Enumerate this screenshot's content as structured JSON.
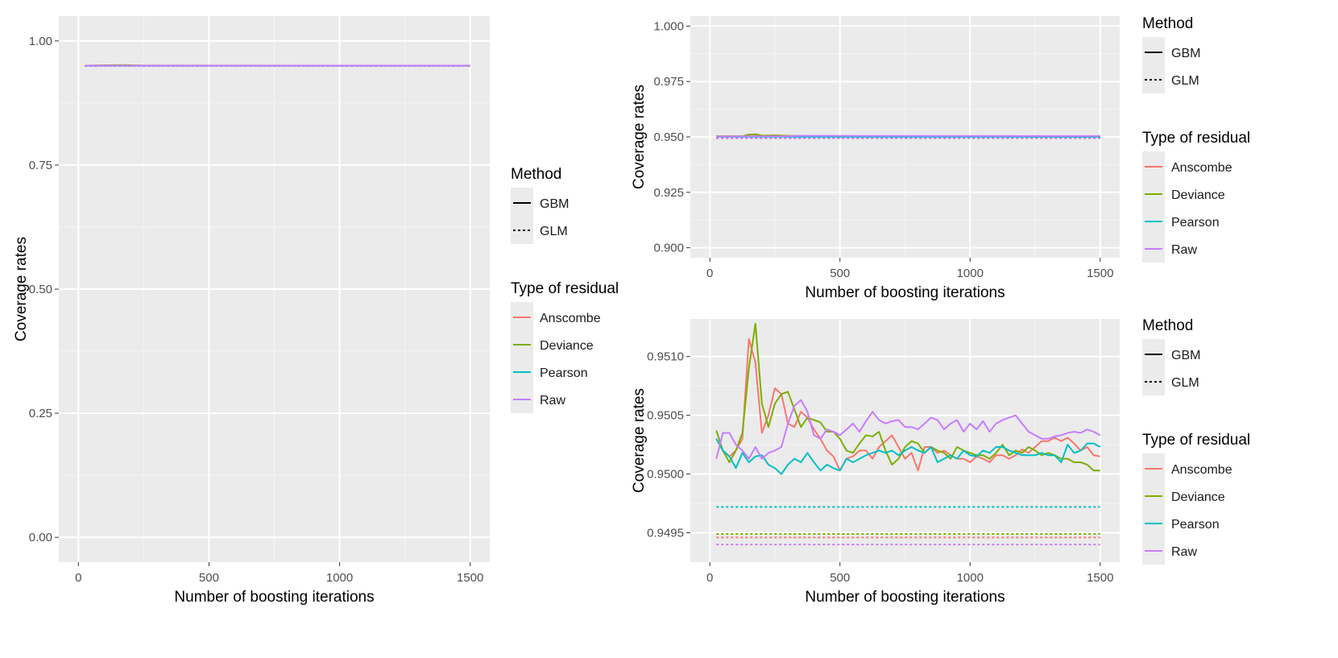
{
  "colors": {
    "panel_bg": "#EBEBEB",
    "grid_major": "#FFFFFF",
    "grid_minor": "#F4F4F4",
    "tick_text": "#4D4D4D",
    "axis_title": "#000000",
    "Anscombe": "#F8766D",
    "Deviance": "#7CAE00",
    "Pearson": "#00BFC4",
    "Raw": "#C77CFF"
  },
  "legend": {
    "method_title": "Method",
    "method_items": [
      {
        "label": "GBM",
        "style": "solid"
      },
      {
        "label": "GLM",
        "style": "dotted"
      }
    ],
    "residual_title": "Type of residual",
    "residual_items": [
      "Anscombe",
      "Deviance",
      "Pearson",
      "Raw"
    ]
  },
  "chart_data": [
    {
      "id": "left",
      "type": "line",
      "title": "",
      "xlabel": "Number of boosting iterations",
      "ylabel": "Coverage rates",
      "xlim": [
        -75,
        1575
      ],
      "ylim": [
        -0.05,
        1.05
      ],
      "xticks": [
        0,
        500,
        1000,
        1500
      ],
      "xtick_labels": [
        "0",
        "500",
        "1000",
        "1500"
      ],
      "yticks": [
        0,
        0.25,
        0.5,
        0.75,
        1
      ],
      "ytick_labels": [
        "0.00",
        "0.25",
        "0.50",
        "0.75",
        "1.00"
      ],
      "series": [
        {
          "name": "Anscombe",
          "method": "GBM",
          "x": [
            25,
            1500
          ],
          "y": [
            0.9502,
            0.9502
          ]
        },
        {
          "name": "Deviance",
          "method": "GBM",
          "x": [
            25,
            150,
            175,
            250,
            1500
          ],
          "y": [
            0.9502,
            0.9512,
            0.9512,
            0.9504,
            0.9502
          ]
        },
        {
          "name": "Pearson",
          "method": "GBM",
          "x": [
            25,
            1500
          ],
          "y": [
            0.9501,
            0.9501
          ]
        },
        {
          "name": "Raw",
          "method": "GBM",
          "x": [
            25,
            1500
          ],
          "y": [
            0.9503,
            0.9503
          ]
        },
        {
          "name": "Anscombe",
          "method": "GLM",
          "x": [
            25,
            1500
          ],
          "y": [
            0.9495,
            0.9495
          ]
        },
        {
          "name": "Deviance",
          "method": "GLM",
          "x": [
            25,
            1500
          ],
          "y": [
            0.9495,
            0.9495
          ]
        },
        {
          "name": "Pearson",
          "method": "GLM",
          "x": [
            25,
            1500
          ],
          "y": [
            0.9497,
            0.9497
          ]
        },
        {
          "name": "Raw",
          "method": "GLM",
          "x": [
            25,
            1500
          ],
          "y": [
            0.9494,
            0.9494
          ]
        }
      ]
    },
    {
      "id": "top-right",
      "type": "line",
      "title": "",
      "xlabel": "Number of boosting iterations",
      "ylabel": "Coverage rates",
      "xlim": [
        -75,
        1575
      ],
      "ylim": [
        0.8955,
        1.0045
      ],
      "xticks": [
        0,
        500,
        1000,
        1500
      ],
      "xtick_labels": [
        "0",
        "500",
        "1000",
        "1500"
      ],
      "yticks": [
        0.9,
        0.925,
        0.95,
        0.975,
        1
      ],
      "ytick_labels": [
        "0.900",
        "0.925",
        "0.950",
        "0.975",
        "1.000"
      ],
      "series": [
        {
          "name": "Anscombe",
          "method": "GBM",
          "x": [
            25,
            125,
            150,
            175,
            200,
            250,
            300,
            400,
            1500
          ],
          "y": [
            0.9502,
            0.9503,
            0.9511,
            0.9509,
            0.9504,
            0.9507,
            0.9504,
            0.9503,
            0.9502
          ]
        },
        {
          "name": "Deviance",
          "method": "GBM",
          "x": [
            25,
            125,
            150,
            175,
            200,
            250,
            300,
            400,
            1500
          ],
          "y": [
            0.9503,
            0.9503,
            0.951,
            0.9512,
            0.9506,
            0.9507,
            0.9505,
            0.9503,
            0.9501
          ]
        },
        {
          "name": "Pearson",
          "method": "GBM",
          "x": [
            25,
            1500
          ],
          "y": [
            0.9501,
            0.9501
          ]
        },
        {
          "name": "Raw",
          "method": "GBM",
          "x": [
            25,
            300,
            350,
            1500
          ],
          "y": [
            0.9502,
            0.9503,
            0.9505,
            0.9504
          ]
        },
        {
          "name": "Anscombe",
          "method": "GLM",
          "x": [
            25,
            1500
          ],
          "y": [
            0.9495,
            0.9495
          ]
        },
        {
          "name": "Deviance",
          "method": "GLM",
          "x": [
            25,
            1500
          ],
          "y": [
            0.9495,
            0.9495
          ]
        },
        {
          "name": "Pearson",
          "method": "GLM",
          "x": [
            25,
            1500
          ],
          "y": [
            0.9497,
            0.9497
          ]
        },
        {
          "name": "Raw",
          "method": "GLM",
          "x": [
            25,
            1500
          ],
          "y": [
            0.9494,
            0.9494
          ]
        }
      ]
    },
    {
      "id": "bottom-right",
      "type": "line",
      "title": "",
      "xlabel": "Number of boosting iterations",
      "ylabel": "Coverage rates",
      "xlim": [
        -75,
        1575
      ],
      "ylim": [
        0.94925,
        0.95132
      ],
      "xticks": [
        0,
        500,
        1000,
        1500
      ],
      "xtick_labels": [
        "0",
        "500",
        "1000",
        "1500"
      ],
      "yticks": [
        0.9495,
        0.95,
        0.9505,
        0.951
      ],
      "ytick_labels": [
        "0.9495",
        "0.9500",
        "0.9505",
        "0.9510"
      ],
      "series": [
        {
          "name": "Anscombe",
          "method": "GBM",
          "x": [
            25,
            50,
            75,
            100,
            125,
            150,
            175,
            200,
            225,
            250,
            275,
            300,
            325,
            350,
            375,
            400,
            425,
            450,
            475,
            500,
            525,
            550,
            575,
            600,
            625,
            650,
            675,
            700,
            725,
            750,
            775,
            800,
            825,
            850,
            875,
            900,
            925,
            950,
            975,
            1000,
            1025,
            1050,
            1075,
            1100,
            1125,
            1150,
            1175,
            1200,
            1225,
            1250,
            1275,
            1300,
            1325,
            1350,
            1375,
            1400,
            1425,
            1450,
            1475,
            1500
          ],
          "y": [
            0.9503,
            0.9502,
            0.95015,
            0.9502,
            0.9503,
            0.95115,
            0.95095,
            0.95035,
            0.9505,
            0.95073,
            0.95068,
            0.95043,
            0.9504,
            0.95053,
            0.95048,
            0.95038,
            0.9503,
            0.9502,
            0.95015,
            0.95003,
            0.95013,
            0.95015,
            0.9502,
            0.9502,
            0.95013,
            0.95023,
            0.95028,
            0.95033,
            0.95023,
            0.95013,
            0.95018,
            0.95003,
            0.95023,
            0.95023,
            0.95018,
            0.9502,
            0.95016,
            0.95013,
            0.95013,
            0.9501,
            0.95015,
            0.95013,
            0.9501,
            0.95016,
            0.95016,
            0.95013,
            0.95016,
            0.95021,
            0.95018,
            0.95023,
            0.95028,
            0.95028,
            0.95031,
            0.95028,
            0.95031,
            0.95026,
            0.9502,
            0.95023,
            0.95016,
            0.95015
          ]
        },
        {
          "name": "Deviance",
          "method": "GBM",
          "x": [
            25,
            50,
            75,
            100,
            125,
            150,
            175,
            200,
            225,
            250,
            275,
            300,
            325,
            350,
            375,
            400,
            425,
            450,
            475,
            500,
            525,
            550,
            575,
            600,
            625,
            650,
            675,
            700,
            725,
            750,
            775,
            800,
            825,
            850,
            875,
            900,
            925,
            950,
            975,
            1000,
            1025,
            1050,
            1075,
            1100,
            1125,
            1150,
            1175,
            1200,
            1225,
            1250,
            1275,
            1300,
            1325,
            1350,
            1375,
            1400,
            1425,
            1450,
            1475,
            1500
          ],
          "y": [
            0.95037,
            0.9502,
            0.9501,
            0.9502,
            0.95035,
            0.9509,
            0.95128,
            0.9506,
            0.9504,
            0.9506,
            0.95068,
            0.9507,
            0.95055,
            0.9504,
            0.95048,
            0.95046,
            0.95044,
            0.95036,
            0.95036,
            0.9503,
            0.9502,
            0.95018,
            0.95026,
            0.95033,
            0.95032,
            0.95036,
            0.9502,
            0.95008,
            0.95013,
            0.95023,
            0.95028,
            0.95026,
            0.95018,
            0.95023,
            0.9502,
            0.95018,
            0.95013,
            0.95023,
            0.9502,
            0.95018,
            0.95016,
            0.95016,
            0.95013,
            0.95018,
            0.95025,
            0.95016,
            0.9502,
            0.95018,
            0.95023,
            0.9502,
            0.95016,
            0.95018,
            0.95016,
            0.95013,
            0.95013,
            0.9501,
            0.9501,
            0.95008,
            0.95003,
            0.95003
          ]
        },
        {
          "name": "Pearson",
          "method": "GBM",
          "x": [
            25,
            50,
            75,
            100,
            125,
            150,
            175,
            200,
            225,
            250,
            275,
            300,
            325,
            350,
            375,
            400,
            425,
            450,
            475,
            500,
            525,
            550,
            575,
            600,
            625,
            650,
            675,
            700,
            725,
            750,
            775,
            800,
            825,
            850,
            875,
            900,
            925,
            950,
            975,
            1000,
            1025,
            1050,
            1075,
            1100,
            1125,
            1150,
            1175,
            1200,
            1225,
            1250,
            1275,
            1300,
            1325,
            1350,
            1375,
            1400,
            1425,
            1450,
            1475,
            1500
          ],
          "y": [
            0.9503,
            0.9502,
            0.95015,
            0.95005,
            0.95018,
            0.9501,
            0.95015,
            0.95016,
            0.95008,
            0.95005,
            0.95,
            0.95008,
            0.95013,
            0.9501,
            0.95018,
            0.9501,
            0.95003,
            0.95008,
            0.95005,
            0.95003,
            0.95013,
            0.9501,
            0.95013,
            0.95016,
            0.95018,
            0.9502,
            0.95018,
            0.9502,
            0.95016,
            0.9502,
            0.95023,
            0.9502,
            0.95018,
            0.95023,
            0.9501,
            0.95013,
            0.95016,
            0.95013,
            0.9502,
            0.95016,
            0.95015,
            0.9502,
            0.95018,
            0.95023,
            0.95023,
            0.9502,
            0.95018,
            0.95016,
            0.95016,
            0.95016,
            0.95018,
            0.95016,
            0.95016,
            0.9501,
            0.95025,
            0.95018,
            0.9502,
            0.95026,
            0.95026,
            0.95023
          ]
        },
        {
          "name": "Raw",
          "method": "GBM",
          "x": [
            25,
            50,
            75,
            100,
            125,
            150,
            175,
            200,
            225,
            250,
            275,
            300,
            325,
            350,
            375,
            400,
            425,
            450,
            475,
            500,
            525,
            550,
            575,
            600,
            625,
            650,
            675,
            700,
            725,
            750,
            775,
            800,
            825,
            850,
            875,
            900,
            925,
            950,
            975,
            1000,
            1025,
            1050,
            1075,
            1100,
            1125,
            1150,
            1175,
            1200,
            1225,
            1250,
            1275,
            1300,
            1325,
            1350,
            1375,
            1400,
            1425,
            1450,
            1475,
            1500
          ],
          "y": [
            0.95013,
            0.95035,
            0.95035,
            0.95025,
            0.9502,
            0.95013,
            0.95023,
            0.95013,
            0.95018,
            0.9502,
            0.95023,
            0.95043,
            0.95058,
            0.95063,
            0.95053,
            0.95033,
            0.9503,
            0.95038,
            0.95036,
            0.95033,
            0.95038,
            0.95043,
            0.95036,
            0.95045,
            0.95053,
            0.95046,
            0.95043,
            0.95045,
            0.95046,
            0.9504,
            0.9504,
            0.95038,
            0.95043,
            0.95048,
            0.95046,
            0.95038,
            0.95043,
            0.95046,
            0.95036,
            0.95043,
            0.95038,
            0.95045,
            0.95036,
            0.95043,
            0.95046,
            0.95048,
            0.9505,
            0.95043,
            0.95036,
            0.95033,
            0.9503,
            0.9503,
            0.95032,
            0.95033,
            0.95035,
            0.95036,
            0.95035,
            0.95038,
            0.95036,
            0.95033
          ]
        },
        {
          "name": "Anscombe",
          "method": "GLM",
          "x": [
            25,
            1500
          ],
          "y": [
            0.94946,
            0.94946
          ]
        },
        {
          "name": "Deviance",
          "method": "GLM",
          "x": [
            25,
            1500
          ],
          "y": [
            0.94949,
            0.94949
          ]
        },
        {
          "name": "Pearson",
          "method": "GLM",
          "x": [
            25,
            1500
          ],
          "y": [
            0.94972,
            0.94972
          ]
        },
        {
          "name": "Raw",
          "method": "GLM",
          "x": [
            25,
            1500
          ],
          "y": [
            0.9494,
            0.9494
          ]
        }
      ]
    }
  ]
}
